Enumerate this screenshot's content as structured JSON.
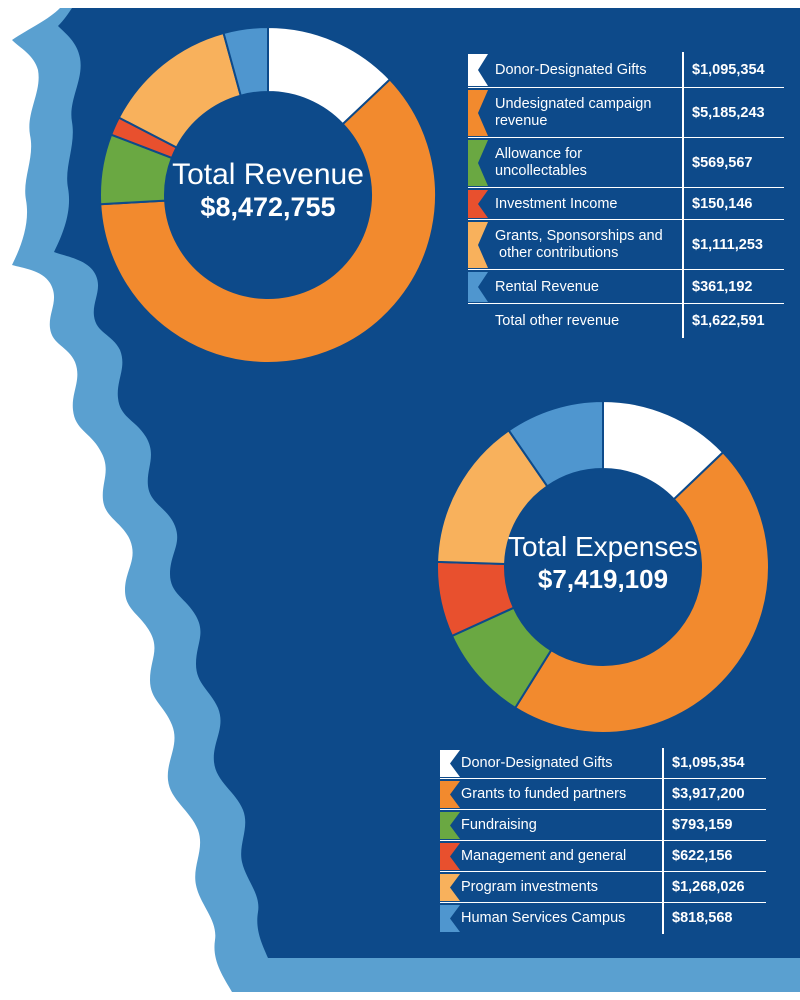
{
  "colors": {
    "background_navy": "#0d4a8a",
    "coast_light_blue": "#5aa0d0",
    "white": "#ffffff",
    "orange": "#f28a2e",
    "green": "#6aa842",
    "red": "#e8502e",
    "light_orange": "#f8b15c",
    "blue": "#4f96cf"
  },
  "revenue": {
    "title": "Total Revenue",
    "total": "$8,472,755",
    "rows": [
      {
        "label_lines": [
          "Donor-Designated Gifts"
        ],
        "value": "$1,095,354",
        "color": "#ffffff"
      },
      {
        "label_lines": [
          "Undesignated campaign",
          "revenue"
        ],
        "value": "$5,185,243",
        "color": "#f28a2e"
      },
      {
        "label_lines": [
          "Allowance for",
          "uncollectables"
        ],
        "value": "$569,567",
        "color": "#6aa842"
      },
      {
        "label_lines": [
          "Investment Income"
        ],
        "value": "$150,146",
        "color": "#e8502e"
      },
      {
        "label_lines": [
          "Grants, Sponsorships and",
          " other contributions"
        ],
        "value": "$1,111,253",
        "color": "#f8b15c"
      },
      {
        "label_lines": [
          "Rental Revenue"
        ],
        "value": "$361,192",
        "color": "#4f96cf"
      },
      {
        "label_lines": [
          "Total other revenue"
        ],
        "value": "$1,622,591",
        "color": null
      }
    ]
  },
  "expenses": {
    "title": "Total Expenses",
    "total": "$7,419,109",
    "rows": [
      {
        "label_lines": [
          "Donor-Designated Gifts"
        ],
        "value": "$1,095,354",
        "color": "#ffffff"
      },
      {
        "label_lines": [
          "Grants to funded partners"
        ],
        "value": "$3,917,200",
        "color": "#f28a2e"
      },
      {
        "label_lines": [
          "Fundraising"
        ],
        "value": "$793,159",
        "color": "#6aa842"
      },
      {
        "label_lines": [
          "Management and general"
        ],
        "value": "$622,156",
        "color": "#e8502e"
      },
      {
        "label_lines": [
          "Program investments"
        ],
        "value": "$1,268,026",
        "color": "#f8b15c"
      },
      {
        "label_lines": [
          "Human Services Campus"
        ],
        "value": "$818,568",
        "color": "#4f96cf"
      }
    ]
  },
  "chart_data": [
    {
      "type": "pie",
      "title": "Total Revenue",
      "total": 8472755,
      "categories": [
        "Donor-Designated Gifts",
        "Undesignated campaign revenue",
        "Allowance for uncollectables",
        "Investment Income",
        "Grants, Sponsorships and other contributions",
        "Rental Revenue"
      ],
      "values": [
        1095354,
        5185243,
        569567,
        150146,
        1111253,
        361192
      ],
      "colors": [
        "#ffffff",
        "#f28a2e",
        "#6aa842",
        "#e8502e",
        "#f8b15c",
        "#4f96cf"
      ]
    },
    {
      "type": "pie",
      "title": "Total Expenses",
      "total": 7419109,
      "categories": [
        "Donor-Designated Gifts",
        "Grants to funded partners",
        "Fundraising",
        "Management and general",
        "Program investments",
        "Human Services Campus"
      ],
      "values": [
        1095354,
        3917200,
        793159,
        622156,
        1268026,
        818568
      ],
      "colors": [
        "#ffffff",
        "#f28a2e",
        "#6aa842",
        "#e8502e",
        "#f8b15c",
        "#4f96cf"
      ]
    }
  ]
}
